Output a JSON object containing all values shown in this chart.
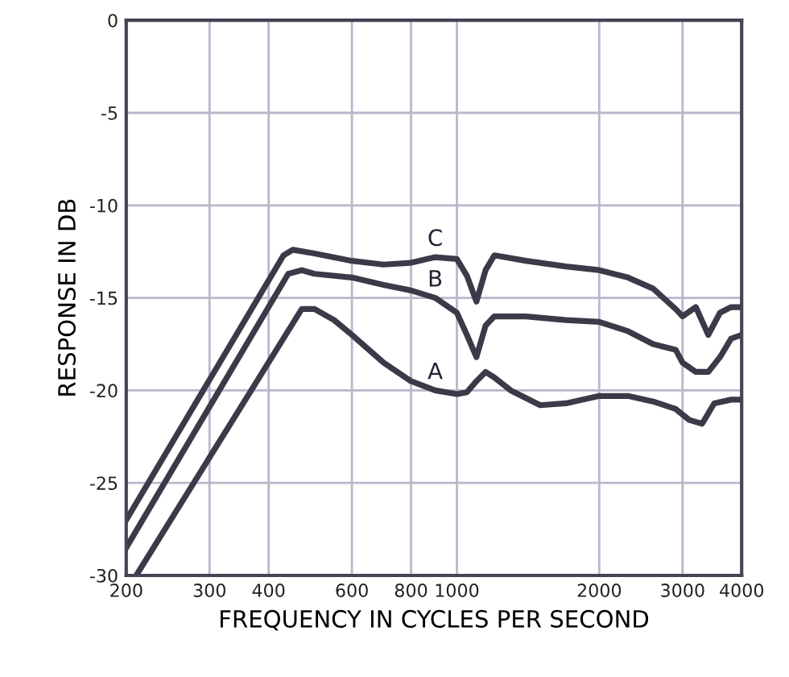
{
  "chart_data": {
    "type": "line",
    "xlabel": "FREQUENCY IN CYCLES PER SECOND",
    "ylabel": "RESPONSE IN DB",
    "log": "x",
    "xlim": [
      200,
      4000
    ],
    "xticks": [
      200,
      300,
      400,
      600,
      800,
      1000,
      2000,
      3000,
      4000
    ],
    "ylim": [
      -30,
      0
    ],
    "yticks": [
      0,
      -5,
      -10,
      -15,
      -20,
      -25,
      -30
    ],
    "grid": true,
    "line_style": "solid",
    "series": [
      {
        "name": "C",
        "color": "#3a3a48",
        "x": [
          200,
          430,
          450,
          500,
          600,
          700,
          800,
          900,
          1000,
          1050,
          1100,
          1150,
          1200,
          1400,
          1700,
          2000,
          2300,
          2600,
          2900,
          3000,
          3200,
          3400,
          3600,
          3800,
          4000
        ],
        "values": [
          -27,
          -12.7,
          -12.4,
          -12.6,
          -13,
          -13.2,
          -13.1,
          -12.8,
          -12.9,
          -13.8,
          -15.2,
          -13.5,
          -12.7,
          -13,
          -13.3,
          -13.5,
          -13.9,
          -14.5,
          -15.6,
          -16,
          -15.5,
          -17,
          -15.8,
          -15.5,
          -15.5
        ]
      },
      {
        "name": "B",
        "color": "#3a3a48",
        "x": [
          200,
          440,
          470,
          500,
          600,
          700,
          800,
          900,
          1000,
          1050,
          1100,
          1150,
          1200,
          1400,
          1700,
          2000,
          2300,
          2600,
          2900,
          3000,
          3200,
          3400,
          3600,
          3800,
          4000
        ],
        "values": [
          -28.5,
          -13.7,
          -13.5,
          -13.7,
          -13.9,
          -14.3,
          -14.6,
          -15,
          -15.8,
          -17,
          -18.2,
          -16.5,
          -16,
          -16,
          -16.2,
          -16.3,
          -16.8,
          -17.5,
          -17.8,
          -18.5,
          -19,
          -19,
          -18.2,
          -17.2,
          -17
        ]
      },
      {
        "name": "A",
        "color": "#3a3a48",
        "x": [
          210,
          470,
          500,
          550,
          600,
          700,
          800,
          900,
          1000,
          1050,
          1100,
          1150,
          1200,
          1300,
          1500,
          1700,
          2000,
          2300,
          2600,
          2900,
          3100,
          3300,
          3500,
          3800,
          4000
        ],
        "values": [
          -30,
          -15.6,
          -15.6,
          -16.2,
          -17,
          -18.5,
          -19.5,
          -20,
          -20.2,
          -20.1,
          -19.5,
          -19,
          -19.3,
          -20,
          -20.8,
          -20.7,
          -20.3,
          -20.3,
          -20.6,
          -21,
          -21.6,
          -21.8,
          -20.7,
          -20.5,
          -20.5
        ]
      }
    ]
  }
}
